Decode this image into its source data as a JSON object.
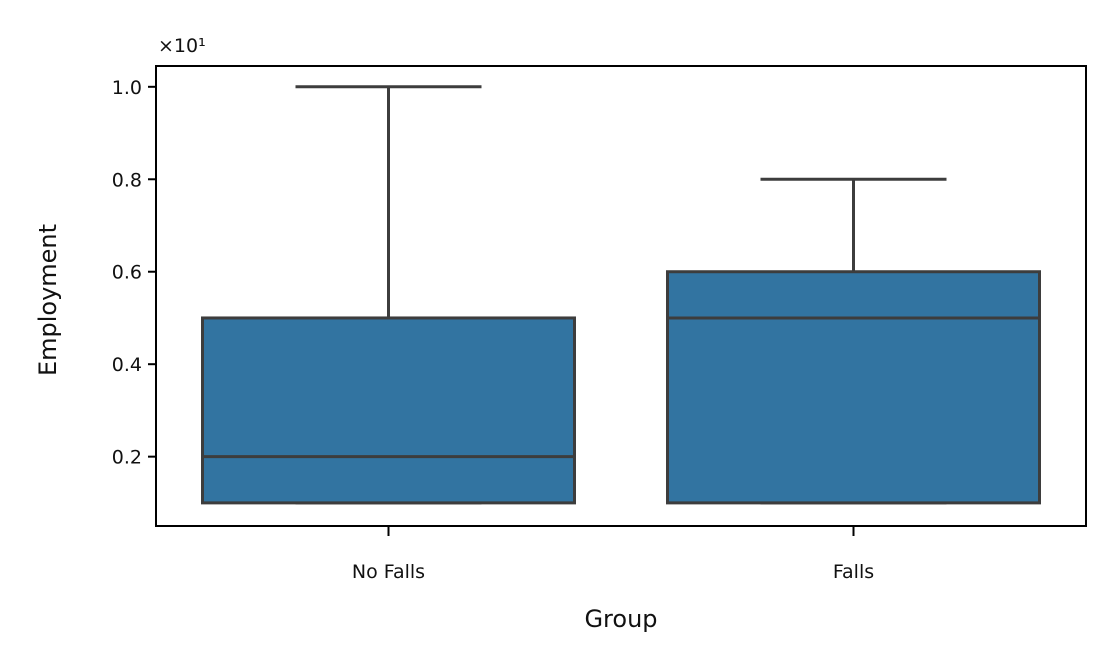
{
  "chart_data": {
    "type": "box",
    "xlabel": "Group",
    "ylabel": "Employment",
    "offset_text": "×10¹",
    "y_tick_labels": [
      "0.2",
      "0.4",
      "0.6",
      "0.8",
      "1.0"
    ],
    "ylim": [
      0.05,
      1.045
    ],
    "grid": false,
    "box_color": "#3274a1",
    "line_color": "#3d3d3d",
    "categories": [
      "No Falls",
      "Falls"
    ],
    "boxes": [
      {
        "category": "No Falls",
        "whisker_low": 0.1,
        "q1": 0.1,
        "median": 0.2,
        "q3": 0.5,
        "whisker_high": 1.0
      },
      {
        "category": "Falls",
        "whisker_low": 0.1,
        "q1": 0.1,
        "median": 0.5,
        "q3": 0.6,
        "whisker_high": 0.8
      }
    ]
  }
}
